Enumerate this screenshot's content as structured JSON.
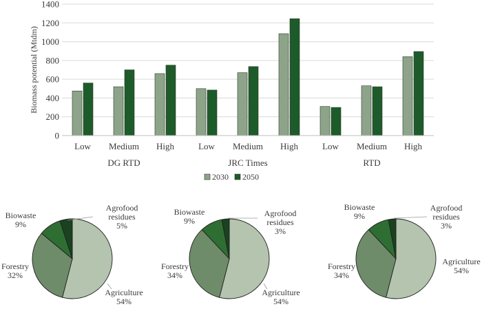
{
  "chart_data": [
    {
      "type": "bar",
      "ylabel": "Biomass potential (Mtdm)",
      "ylim": [
        0,
        1400
      ],
      "yticks": [
        0,
        200,
        400,
        600,
        800,
        1000,
        1200,
        1400
      ],
      "groups": [
        "DG RTD",
        "JRC Times",
        "RTD"
      ],
      "categories": [
        "Low",
        "Medium",
        "High",
        "Low",
        "Medium",
        "High",
        "Low",
        "Medium",
        "High"
      ],
      "series": [
        {
          "name": "2030",
          "color": "#8ea48a",
          "values": [
            475,
            520,
            660,
            500,
            670,
            1085,
            310,
            530,
            840
          ]
        },
        {
          "name": "2050",
          "color": "#1e5b2a",
          "values": [
            560,
            700,
            750,
            485,
            735,
            1245,
            300,
            520,
            895
          ]
        }
      ],
      "legend_position": "bottom",
      "grid": true
    },
    {
      "type": "pie",
      "slices": [
        {
          "label": "Agriculture",
          "value": 54,
          "display": "54%",
          "color": "#b4c4ae"
        },
        {
          "label": "Forestry",
          "value": 32,
          "display": "32%",
          "color": "#6f8c6a"
        },
        {
          "label": "Biowaste",
          "value": 9,
          "display": "9%",
          "color": "#2f6e32"
        },
        {
          "label": "Agrofood residues",
          "value": 5,
          "display": "5%",
          "color": "#1a4221"
        }
      ]
    },
    {
      "type": "pie",
      "slices": [
        {
          "label": "Agriculture",
          "value": 54,
          "display": "54%",
          "color": "#b4c4ae"
        },
        {
          "label": "Forestry",
          "value": 34,
          "display": "34%",
          "color": "#6f8c6a"
        },
        {
          "label": "Biowaste",
          "value": 9,
          "display": "9%",
          "color": "#2f6e32"
        },
        {
          "label": "Agrofood residues",
          "value": 3,
          "display": "3%",
          "color": "#1a4221"
        }
      ]
    },
    {
      "type": "pie",
      "slices": [
        {
          "label": "Agriculture",
          "value": 54,
          "display": "54%",
          "color": "#b4c4ae"
        },
        {
          "label": "Forestry",
          "value": 34,
          "display": "34%",
          "color": "#6f8c6a"
        },
        {
          "label": "Biowaste",
          "value": 9,
          "display": "9%",
          "color": "#2f6e32"
        },
        {
          "label": "Agrofood residues",
          "value": 3,
          "display": "3%",
          "color": "#1a4221"
        }
      ]
    }
  ]
}
